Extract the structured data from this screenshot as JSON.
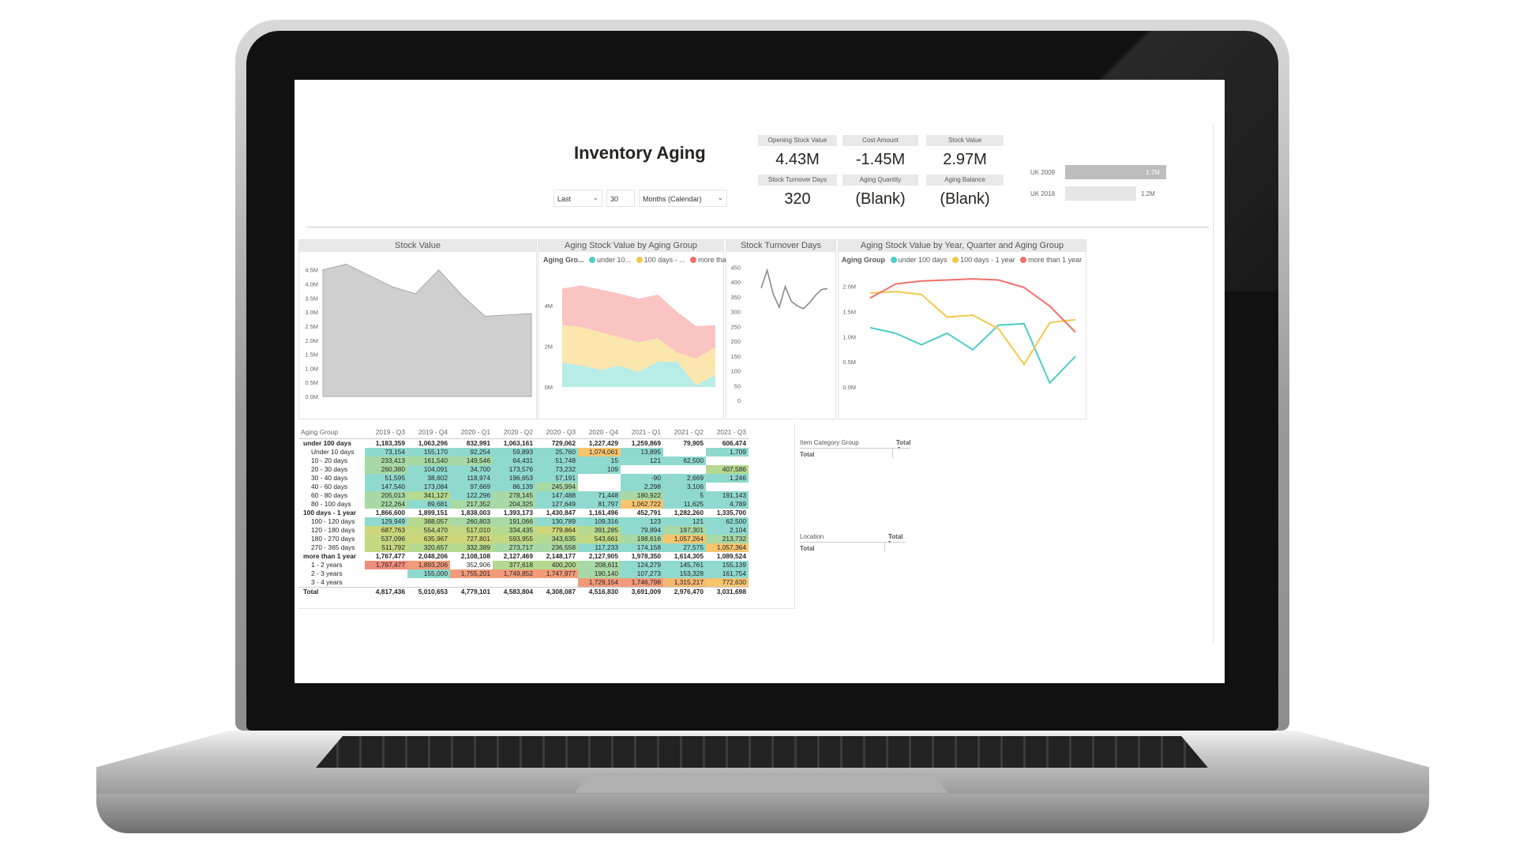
{
  "dashboard": {
    "title": "Inventory Aging",
    "filters": {
      "period_mode": "Last",
      "period_count": "30",
      "period_unit": "Months (Calendar)"
    },
    "kpis": [
      {
        "label": "Opening Stock Value",
        "value": "4.43M"
      },
      {
        "label": "Cost Amount",
        "value": "-1.45M"
      },
      {
        "label": "Stock Value",
        "value": "2.97M"
      },
      {
        "label": "Stock Turnover Days",
        "value": "320"
      },
      {
        "label": "Aging Quantity",
        "value": "(Blank)"
      },
      {
        "label": "Aging Balance",
        "value": "(Blank)"
      }
    ],
    "company_bars": [
      {
        "label": "UK 2009",
        "value": 1.7,
        "display": "1.7M",
        "color": "#bdbdbd"
      },
      {
        "label": "UK 2018",
        "value": 1.2,
        "display": "1.2M",
        "color": "#e6e6e6"
      }
    ],
    "panels": {
      "stock_value": "Stock Value",
      "aging_by_group": "Aging Stock Value by Aging Group",
      "turnover": "Stock Turnover Days",
      "aging_by_quarter": "Aging Stock Value by Year, Quarter and Aging Group"
    },
    "legend": {
      "title_short": "Aging Gro...",
      "title": "Aging Group",
      "items_short": [
        "under 10...",
        "100 days - ...",
        "more tha..."
      ],
      "items": [
        "under 100 days",
        "100 days - 1 year",
        "more than 1 year"
      ]
    },
    "colors": {
      "under": "#4ecdc4",
      "mid": "#f2c94c",
      "more": "#f0706a",
      "grey_area": "#cfcfcf"
    },
    "category_table": {
      "header": "Item Category Group",
      "col": "Total",
      "row": "Total"
    },
    "location_table": {
      "header": "Location",
      "col": "Total",
      "row": "Total"
    },
    "matrix": {
      "header_first": "Aging Group",
      "columns": [
        "2019 - Q3",
        "2019 - Q4",
        "2020 - Q1",
        "2020 - Q2",
        "2020 - Q3",
        "2020 - Q4",
        "2021 - Q1",
        "2021 - Q2",
        "2021 - Q3"
      ],
      "rows": [
        {
          "label": "under 100 days",
          "type": "grp",
          "cells": [
            "1,183,359",
            "1,063,296",
            "832,991",
            "1,063,161",
            "729,062",
            "1,227,429",
            "1,259,869",
            "79,905",
            "606,474"
          ]
        },
        {
          "label": "Under 10 days",
          "type": "sub",
          "cells": [
            "73,154",
            "155,170",
            "92,254",
            "59,893",
            "25,760",
            "1,074,061",
            "13,895",
            "",
            "1,709"
          ]
        },
        {
          "label": "10 - 20 days",
          "type": "sub",
          "cells": [
            "233,413",
            "161,540",
            "149,546",
            "64,431",
            "51,748",
            "15",
            "121",
            "62,500",
            ""
          ]
        },
        {
          "label": "20 - 30 days",
          "type": "sub",
          "cells": [
            "260,380",
            "104,091",
            "34,700",
            "173,576",
            "73,232",
            "109",
            "",
            "",
            "407,586"
          ]
        },
        {
          "label": "30 - 40 days",
          "type": "sub",
          "cells": [
            "51,595",
            "38,602",
            "118,974",
            "196,653",
            "57,191",
            "",
            "-90",
            "2,669",
            "1,246"
          ]
        },
        {
          "label": "40 - 60 days",
          "type": "sub",
          "cells": [
            "147,540",
            "173,084",
            "97,669",
            "86,139",
            "245,994",
            "",
            "2,298",
            "3,106",
            ""
          ]
        },
        {
          "label": "60 - 80 days",
          "type": "sub",
          "cells": [
            "205,013",
            "341,127",
            "122,296",
            "278,145",
            "147,488",
            "71,448",
            "180,922",
            "5",
            "191,143"
          ]
        },
        {
          "label": "80 - 100 days",
          "type": "sub",
          "cells": [
            "212,264",
            "89,681",
            "217,352",
            "204,325",
            "127,649",
            "81,797",
            "1,062,722",
            "11,625",
            "4,789"
          ]
        },
        {
          "label": "100 days - 1 year",
          "type": "grp",
          "cells": [
            "1,866,600",
            "1,899,151",
            "1,838,003",
            "1,393,173",
            "1,430,847",
            "1,161,496",
            "452,791",
            "1,282,260",
            "1,335,700"
          ]
        },
        {
          "label": "100 - 120 days",
          "type": "sub",
          "cells": [
            "129,949",
            "388,057",
            "260,803",
            "191,066",
            "130,789",
            "109,316",
            "123",
            "121",
            "62,500"
          ]
        },
        {
          "label": "120 - 180 days",
          "type": "sub",
          "cells": [
            "687,763",
            "554,470",
            "517,010",
            "334,435",
            "779,864",
            "391,285",
            "79,894",
            "197,301",
            "2,104"
          ]
        },
        {
          "label": "180 - 270 days",
          "type": "sub",
          "cells": [
            "537,096",
            "635,967",
            "727,801",
            "593,955",
            "343,635",
            "543,661",
            "198,616",
            "1,057,264",
            "213,732"
          ]
        },
        {
          "label": "270 - 365 days",
          "type": "sub",
          "cells": [
            "511,792",
            "320,657",
            "332,389",
            "273,717",
            "236,558",
            "117,233",
            "174,158",
            "27,575",
            "1,057,364"
          ]
        },
        {
          "label": "more than 1 year",
          "type": "grp",
          "cells": [
            "1,767,477",
            "2,048,206",
            "2,108,108",
            "2,127,469",
            "2,148,177",
            "2,127,905",
            "1,978,350",
            "1,614,305",
            "1,089,524"
          ]
        },
        {
          "label": "1 - 2 years",
          "type": "sub",
          "cells": [
            "1,767,477",
            "1,893,206",
            "352,906",
            "377,618",
            "400,200",
            "208,611",
            "124,279",
            "145,761",
            "155,139"
          ]
        },
        {
          "label": "2 - 3 years",
          "type": "sub",
          "cells": [
            "",
            "155,000",
            "1,755,201",
            "1,749,852",
            "1,747,977",
            "190,140",
            "107,273",
            "153,328",
            "161,754"
          ]
        },
        {
          "label": "3 - 4 years",
          "type": "sub",
          "cells": [
            "",
            "",
            "",
            "",
            "",
            "1,729,154",
            "1,746,798",
            "1,315,217",
            "772,630"
          ]
        },
        {
          "label": "Total",
          "type": "tot",
          "cells": [
            "4,817,436",
            "5,010,653",
            "4,779,101",
            "4,583,804",
            "4,308,087",
            "4,516,830",
            "3,691,009",
            "2,976,470",
            "3,031,698"
          ]
        }
      ],
      "cell_colors": [
        [
          null,
          null,
          null,
          null,
          null,
          null,
          null,
          null,
          null
        ],
        [
          "#8fd9cf",
          "#8fd9cf",
          "#8fd9cf",
          "#8fd9cf",
          "#8fd9cf",
          "#f6c66f",
          "#8fd9cf",
          null,
          "#8fd9cf"
        ],
        [
          "#a9d9a5",
          "#a9d9a5",
          "#a9d9a5",
          "#8fd9cf",
          "#8fd9cf",
          "#8fd9cf",
          "#8fd9cf",
          "#8fd9cf",
          null
        ],
        [
          "#a9d9a5",
          "#8fd9cf",
          "#8fd9cf",
          "#8fd9cf",
          "#8fd9cf",
          "#8fd9cf",
          null,
          null,
          "#b5d98f"
        ],
        [
          "#8fd9cf",
          "#8fd9cf",
          "#8fd9cf",
          "#8fd9cf",
          "#8fd9cf",
          null,
          "#8fd9cf",
          "#8fd9cf",
          "#8fd9cf"
        ],
        [
          "#8fd9cf",
          "#8fd9cf",
          "#8fd9cf",
          "#8fd9cf",
          "#a9d9a5",
          null,
          "#8fd9cf",
          "#8fd9cf",
          null
        ],
        [
          "#a9d9a5",
          "#b5d98f",
          "#8fd9cf",
          "#a9d9a5",
          "#8fd9cf",
          "#8fd9cf",
          "#a9d9a5",
          "#8fd9cf",
          "#8fd9cf"
        ],
        [
          "#a9d9a5",
          "#8fd9cf",
          "#a9d9a5",
          "#a9d9a5",
          "#8fd9cf",
          "#8fd9cf",
          "#f6c66f",
          "#8fd9cf",
          "#8fd9cf"
        ],
        [
          null,
          null,
          null,
          null,
          null,
          null,
          null,
          null,
          null
        ],
        [
          "#8fd9cf",
          "#b5d98f",
          "#a9d9a5",
          "#a9d9a5",
          "#8fd9cf",
          "#8fd9cf",
          "#8fd9cf",
          "#8fd9cf",
          "#8fd9cf"
        ],
        [
          "#cfd77a",
          "#c3d881",
          "#c3d881",
          "#b5d98f",
          "#cfd77a",
          "#b5d98f",
          "#8fd9cf",
          "#a9d9a5",
          "#8fd9cf"
        ],
        [
          "#c3d881",
          "#cfd77a",
          "#cfd77a",
          "#c3d881",
          "#b5d98f",
          "#c3d881",
          "#a9d9a5",
          "#f6c66f",
          "#a9d9a5"
        ],
        [
          "#c3d881",
          "#b5d98f",
          "#b5d98f",
          "#a9d9a5",
          "#a9d9a5",
          "#8fd9cf",
          "#8fd9cf",
          "#8fd9cf",
          "#f6c66f"
        ],
        [
          null,
          null,
          null,
          null,
          null,
          null,
          null,
          null,
          null
        ],
        [
          "#f08e7d",
          "#f29b7a",
          null,
          "#b5d98f",
          "#b5d98f",
          "#a9d9a5",
          "#8fd9cf",
          "#8fd9cf",
          "#8fd9cf"
        ],
        [
          null,
          "#8fd9cf",
          "#f29b7a",
          "#f29b7a",
          "#f29b7a",
          "#a9d9a5",
          "#8fd9cf",
          "#8fd9cf",
          "#8fd9cf"
        ],
        [
          null,
          null,
          null,
          null,
          null,
          "#f29b7a",
          "#f29b7a",
          "#f6b870",
          "#f6c66f"
        ],
        [
          null,
          null,
          null,
          null,
          null,
          null,
          null,
          null,
          null
        ]
      ]
    }
  },
  "chart_data": [
    {
      "type": "area",
      "title": "Stock Value",
      "y_ticks": [
        "0.0M",
        "0.5M",
        "1.0M",
        "1.5M",
        "2.0M",
        "2.5M",
        "3.0M",
        "3.5M",
        "4.0M",
        "4.5M"
      ],
      "ylim": [
        0,
        4.8
      ],
      "values": [
        4.5,
        4.7,
        4.3,
        3.9,
        3.65,
        4.5,
        3.6,
        2.85,
        2.9,
        2.95
      ]
    },
    {
      "type": "area",
      "title": "Aging Stock Value by Aging Group",
      "y_ticks": [
        "0M",
        "2M",
        "4M"
      ],
      "ylim": [
        0,
        5.6
      ],
      "series": [
        {
          "name": "under 100 days",
          "values": [
            1.2,
            1.05,
            0.85,
            1.05,
            0.75,
            1.25,
            1.25,
            0.1,
            0.6
          ]
        },
        {
          "name": "100 days - 1 year",
          "values": [
            1.85,
            1.9,
            1.85,
            1.4,
            1.45,
            1.15,
            0.45,
            1.3,
            1.35
          ]
        },
        {
          "name": "more than 1 year",
          "values": [
            1.8,
            2.05,
            2.1,
            2.15,
            2.15,
            2.15,
            2.0,
            1.6,
            1.1
          ]
        }
      ]
    },
    {
      "type": "line",
      "title": "Stock Turnover Days",
      "y_ticks": [
        "0",
        "50",
        "100",
        "150",
        "200",
        "250",
        "300",
        "350",
        "400",
        "450"
      ],
      "ylim": [
        0,
        470
      ],
      "values": [
        380,
        440,
        360,
        315,
        385,
        335,
        320,
        310,
        330,
        355,
        375,
        378
      ]
    },
    {
      "type": "line",
      "title": "Aging Stock Value by Year, Quarter and Aging Group",
      "y_ticks": [
        "0.0M",
        "0.5M",
        "1.0M",
        "1.5M",
        "2.0M"
      ],
      "ylim": [
        0,
        2.2
      ],
      "series": [
        {
          "name": "under 100 days",
          "values": [
            1.18,
            1.07,
            0.84,
            1.07,
            0.74,
            1.23,
            1.26,
            0.08,
            0.61
          ]
        },
        {
          "name": "100 days - 1 year",
          "values": [
            1.87,
            1.9,
            1.84,
            1.39,
            1.43,
            1.16,
            0.45,
            1.28,
            1.34
          ]
        },
        {
          "name": "more than 1 year",
          "values": [
            1.77,
            2.05,
            2.11,
            2.13,
            2.15,
            2.13,
            1.98,
            1.61,
            1.09
          ]
        }
      ]
    }
  ]
}
